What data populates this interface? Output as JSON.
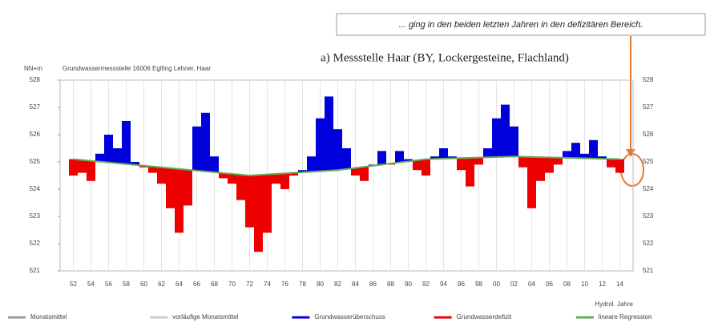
{
  "chart_data": {
    "type": "deviation",
    "title": "a) Messstelle Haar (BY, Lockergesteine, Flachland)",
    "subtitle": "Grundwassermessstelle 16006 Eglfing Lehner, Haar",
    "y_label": "NN+m",
    "x_label": "Hydrol. Jahre",
    "annotation": "... ging in den beiden letzten Jahren in den defizitären Bereich.",
    "x": [
      1952,
      1953,
      1954,
      1955,
      1956,
      1957,
      1958,
      1959,
      1960,
      1961,
      1962,
      1963,
      1964,
      1965,
      1966,
      1967,
      1968,
      1969,
      1970,
      1971,
      1972,
      1973,
      1974,
      1975,
      1976,
      1977,
      1978,
      1979,
      1980,
      1981,
      1982,
      1983,
      1984,
      1985,
      1986,
      1987,
      1988,
      1989,
      1990,
      1991,
      1992,
      1993,
      1994,
      1995,
      1996,
      1997,
      1998,
      1999,
      2000,
      2001,
      2002,
      2003,
      2004,
      2005,
      2006,
      2007,
      2008,
      2009,
      2010,
      2011,
      2012,
      2013,
      2014
    ],
    "values": [
      524.5,
      524.6,
      524.3,
      525.3,
      526.0,
      525.5,
      526.5,
      525.0,
      524.8,
      524.6,
      524.2,
      523.3,
      522.4,
      523.4,
      526.3,
      526.8,
      525.2,
      524.4,
      524.2,
      523.6,
      522.6,
      521.7,
      522.4,
      524.2,
      524.0,
      524.5,
      524.7,
      525.2,
      526.6,
      527.4,
      526.2,
      525.5,
      524.5,
      524.3,
      524.9,
      525.4,
      524.9,
      525.4,
      525.1,
      524.7,
      524.5,
      525.2,
      525.5,
      525.2,
      524.7,
      524.1,
      524.9,
      525.5,
      526.6,
      527.1,
      526.3,
      524.8,
      523.3,
      524.3,
      524.6,
      524.9,
      525.4,
      525.7,
      525.3,
      525.8,
      525.2,
      524.8,
      524.6
    ],
    "regression": {
      "x": [
        1952,
        1962,
        1972,
        1982,
        1992,
        2002,
        2014
      ],
      "values": [
        525.1,
        524.8,
        524.5,
        524.7,
        525.1,
        525.2,
        525.1
      ]
    },
    "legend": [
      {
        "name": "Monatsmittel",
        "color": "#999999"
      },
      {
        "name": "vorläufige Monatsmittel",
        "color": "#cccccc"
      },
      {
        "name": "Grundwasserüberschuss",
        "color": "#0000dd"
      },
      {
        "name": "Grundwasserdefizit",
        "color": "#ee0000"
      },
      {
        "name": "lineare Regression",
        "color": "#66aa55"
      }
    ],
    "xlim": [
      1950.5,
      2015.5
    ],
    "ylim": [
      521,
      528
    ],
    "yticks": [
      521,
      522,
      523,
      524,
      525,
      526,
      527,
      528
    ],
    "xticks": [
      {
        "value": 1952,
        "label": "52"
      },
      {
        "value": 1954,
        "label": "54"
      },
      {
        "value": 1956,
        "label": "56"
      },
      {
        "value": 1958,
        "label": "58"
      },
      {
        "value": 1960,
        "label": "60"
      },
      {
        "value": 1962,
        "label": "62"
      },
      {
        "value": 1964,
        "label": "64"
      },
      {
        "value": 1966,
        "label": "66"
      },
      {
        "value": 1968,
        "label": "68"
      },
      {
        "value": 1970,
        "label": "70"
      },
      {
        "value": 1972,
        "label": "72"
      },
      {
        "value": 1974,
        "label": "74"
      },
      {
        "value": 1976,
        "label": "76"
      },
      {
        "value": 1978,
        "label": "78"
      },
      {
        "value": 1980,
        "label": "80"
      },
      {
        "value": 1982,
        "label": "82"
      },
      {
        "value": 1984,
        "label": "84"
      },
      {
        "value": 1986,
        "label": "86"
      },
      {
        "value": 1988,
        "label": "88"
      },
      {
        "value": 1990,
        "label": "90"
      },
      {
        "value": 1992,
        "label": "92"
      },
      {
        "value": 1994,
        "label": "94"
      },
      {
        "value": 1996,
        "label": "96"
      },
      {
        "value": 1998,
        "label": "98"
      },
      {
        "value": 2000,
        "label": "00"
      },
      {
        "value": 2002,
        "label": "02"
      },
      {
        "value": 2004,
        "label": "04"
      },
      {
        "value": 2006,
        "label": "06"
      },
      {
        "value": 2008,
        "label": "08"
      },
      {
        "value": 2010,
        "label": "10"
      },
      {
        "value": 2012,
        "label": "12"
      },
      {
        "value": 2014,
        "label": "14"
      }
    ],
    "grid": true
  }
}
